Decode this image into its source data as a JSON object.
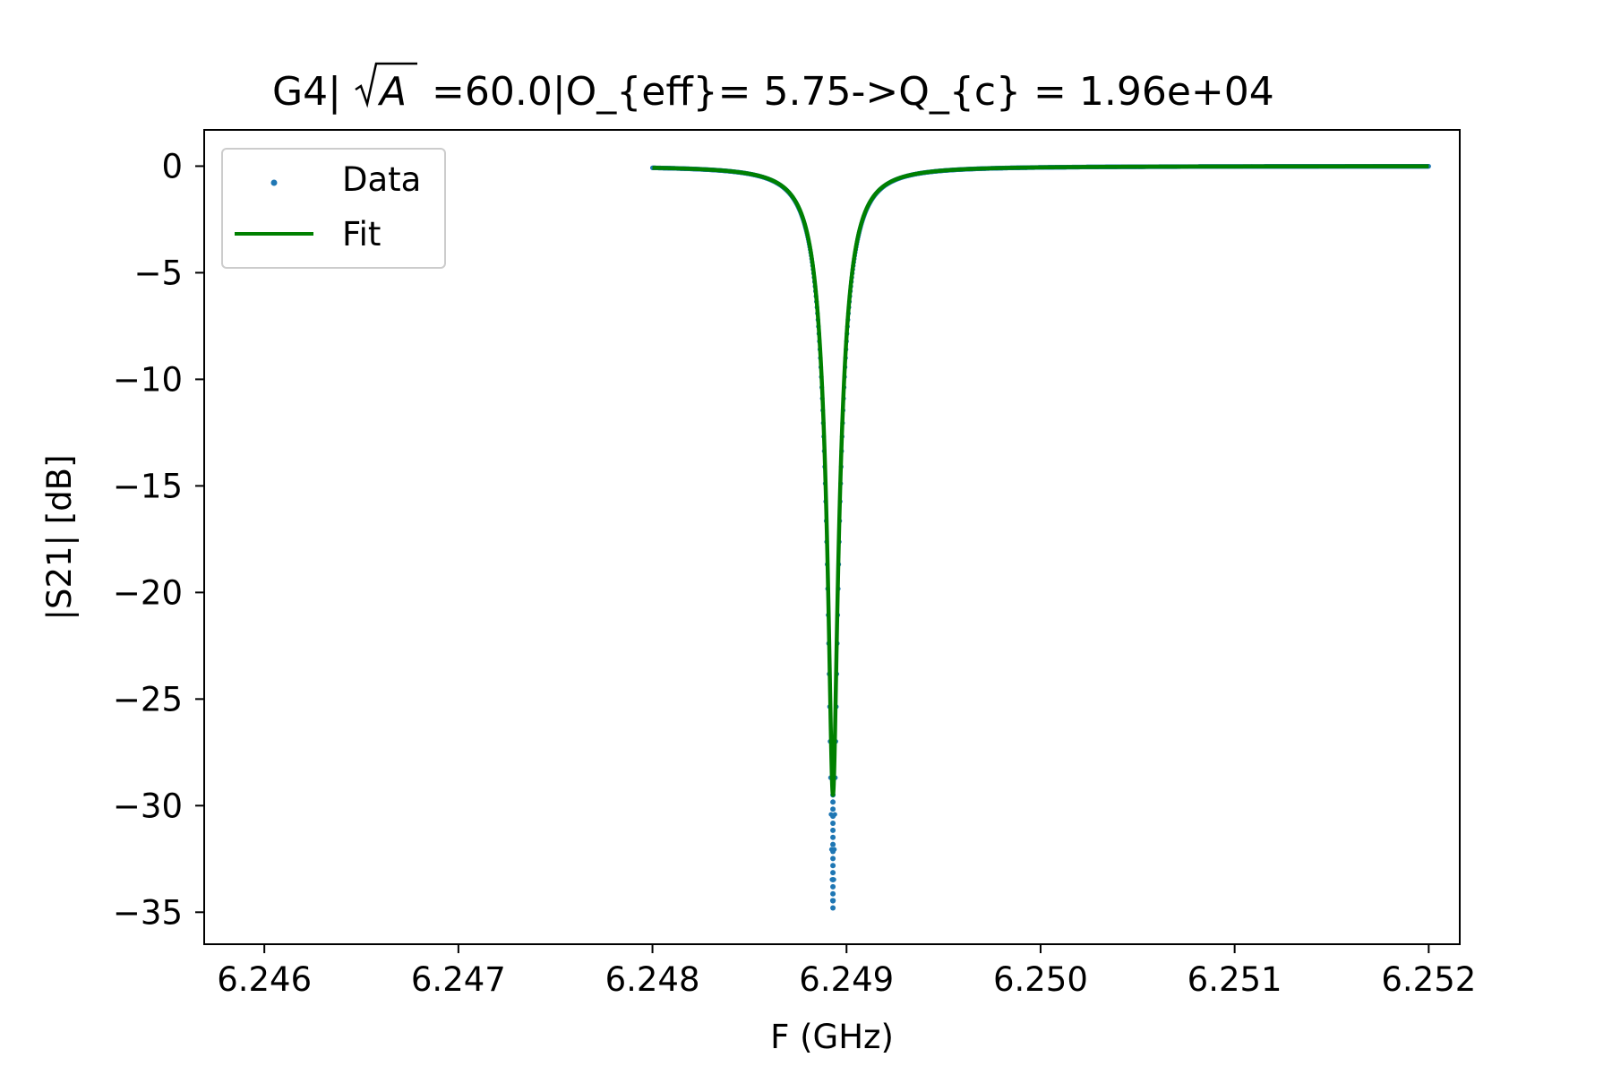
{
  "chart_data": {
    "type": "scatter",
    "title": {
      "prefix": "G4|",
      "radical": "A",
      "suffix": " =60.0|O_{eff}= 5.75->Q_{c} = 1.96e+04"
    },
    "xlabel": "F (GHz)",
    "ylabel": "|S21| [dB]",
    "xlim": [
      6.24569,
      6.25216
    ],
    "ylim": [
      -36.5,
      1.7
    ],
    "xticks": [
      6.246,
      6.247,
      6.248,
      6.249,
      6.25,
      6.251,
      6.252
    ],
    "xtick_labels": [
      "6.246",
      "6.247",
      "6.248",
      "6.249",
      "6.250",
      "6.251",
      "6.252"
    ],
    "yticks": [
      0,
      -5,
      -10,
      -15,
      -20,
      -25,
      -30,
      -35
    ],
    "ytick_labels": [
      "0",
      "−5",
      "−10",
      "−15",
      "−20",
      "−25",
      "−30",
      "−35"
    ],
    "grid": false,
    "legend": {
      "placement": "upper left",
      "entries": [
        "Data",
        "Fit"
      ]
    },
    "resonance": {
      "f0_ghz": 6.24893,
      "x_start_ghz": 6.248,
      "x_end_ghz": 6.252,
      "data_min_db": -34.8,
      "fit_min_db": -29.5,
      "fwhm_ghz": 0.00018
    },
    "series": [
      {
        "name": "Data",
        "kind": "scatter",
        "color": "#1f77b4",
        "points": [
          [
            6.248,
            -0.1
          ],
          [
            6.2482,
            -0.16
          ],
          [
            6.2484,
            -0.27
          ],
          [
            6.2485,
            -0.37
          ],
          [
            6.2486,
            -0.55
          ],
          [
            6.2487,
            -0.9
          ],
          [
            6.24875,
            -1.25
          ],
          [
            6.2488,
            -2.0
          ],
          [
            6.24883,
            -2.8
          ],
          [
            6.24885,
            -4.2
          ],
          [
            6.24887,
            -6.0
          ],
          [
            6.24889,
            -10.0
          ],
          [
            6.24891,
            -18.0
          ],
          [
            6.24892,
            -25.0
          ],
          [
            6.24893,
            -29.5
          ],
          [
            6.24893,
            -31.0
          ],
          [
            6.24893,
            -32.5
          ],
          [
            6.24893,
            -33.5
          ],
          [
            6.24893,
            -34.8
          ],
          [
            6.24894,
            -29.0
          ],
          [
            6.24895,
            -20.0
          ],
          [
            6.24897,
            -10.5
          ],
          [
            6.24899,
            -6.5
          ],
          [
            6.24902,
            -4.0
          ],
          [
            6.24905,
            -2.8
          ],
          [
            6.2491,
            -1.9
          ],
          [
            6.2492,
            -1.1
          ],
          [
            6.2494,
            -0.55
          ],
          [
            6.2496,
            -0.33
          ],
          [
            6.25,
            -0.15
          ],
          [
            6.2505,
            -0.07
          ],
          [
            6.251,
            -0.04
          ],
          [
            6.2515,
            -0.02
          ],
          [
            6.252,
            0.0
          ]
        ]
      },
      {
        "name": "Fit",
        "kind": "line",
        "color": "#008000",
        "points": [
          [
            6.248,
            -0.1
          ],
          [
            6.2482,
            -0.16
          ],
          [
            6.2484,
            -0.27
          ],
          [
            6.2485,
            -0.37
          ],
          [
            6.2486,
            -0.55
          ],
          [
            6.2487,
            -0.9
          ],
          [
            6.24875,
            -1.25
          ],
          [
            6.2488,
            -2.0
          ],
          [
            6.24883,
            -2.8
          ],
          [
            6.24885,
            -4.2
          ],
          [
            6.24887,
            -6.0
          ],
          [
            6.24889,
            -10.0
          ],
          [
            6.24891,
            -18.0
          ],
          [
            6.24892,
            -25.0
          ],
          [
            6.24893,
            -29.5
          ],
          [
            6.24894,
            -25.0
          ],
          [
            6.24895,
            -18.0
          ],
          [
            6.24897,
            -10.5
          ],
          [
            6.24899,
            -6.5
          ],
          [
            6.24902,
            -4.0
          ],
          [
            6.24905,
            -2.8
          ],
          [
            6.2491,
            -1.9
          ],
          [
            6.2492,
            -1.1
          ],
          [
            6.2494,
            -0.55
          ],
          [
            6.2496,
            -0.33
          ],
          [
            6.25,
            -0.15
          ],
          [
            6.2505,
            -0.07
          ],
          [
            6.251,
            -0.04
          ],
          [
            6.2515,
            -0.02
          ],
          [
            6.252,
            0.0
          ]
        ]
      }
    ]
  }
}
